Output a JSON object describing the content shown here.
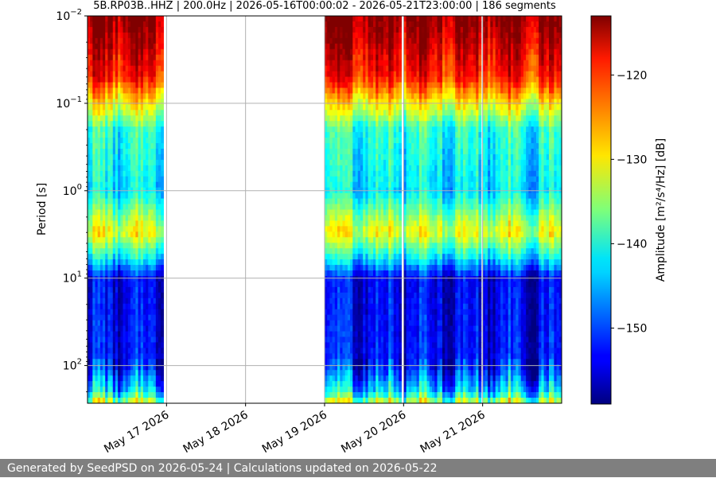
{
  "chart_data": {
    "type": "heatmap",
    "title": "5B.RP03B..HHZ | 200.0Hz | 2026-05-16T00:00:02 - 2026-05-21T23:00:00 | 186 segments",
    "ylabel": "Period [s]",
    "y_scale": "log",
    "y_inverted": true,
    "ylim_seconds": [
      0.01,
      270
    ],
    "y_tick_labels": [
      "10^-2",
      "10^-1",
      "10^0",
      "10^1",
      "10^2"
    ],
    "x_tick_labels": [
      "May 17 2026",
      "May 18 2026",
      "May 19 2026",
      "May 20 2026",
      "May 21 2026"
    ],
    "xlim_days": [
      0,
      6
    ],
    "grid": true,
    "colormap": "jet",
    "colorbar": {
      "label": "Amplitude [m²/s⁴/Hz] [dB]",
      "range_db": [
        -159,
        -113
      ],
      "ticks": [
        -120,
        -130,
        -140,
        -150
      ]
    },
    "data_coverage": [
      {
        "start_day": 0.0,
        "end_day": 0.96
      },
      {
        "start_day": 3.0,
        "end_day": 3.97
      },
      {
        "start_day": 4.0,
        "end_day": 4.98
      },
      {
        "start_day": 5.0,
        "end_day": 6.0
      }
    ],
    "typical_profile_db": [
      {
        "period_s": 0.012,
        "db": -114
      },
      {
        "period_s": 0.05,
        "db": -120
      },
      {
        "period_s": 0.2,
        "db": -140
      },
      {
        "period_s": 1.0,
        "db": -143
      },
      {
        "period_s": 3.0,
        "db": -131
      },
      {
        "period_s": 6.0,
        "db": -143
      },
      {
        "period_s": 10.0,
        "db": -154
      },
      {
        "period_s": 100.0,
        "db": -153
      },
      {
        "period_s": 200.0,
        "db": -144
      },
      {
        "period_s": 260.0,
        "db": -134
      }
    ]
  },
  "footer": "Generated by SeedPSD on 2026-05-24 | Calculations updated on 2026-05-22"
}
